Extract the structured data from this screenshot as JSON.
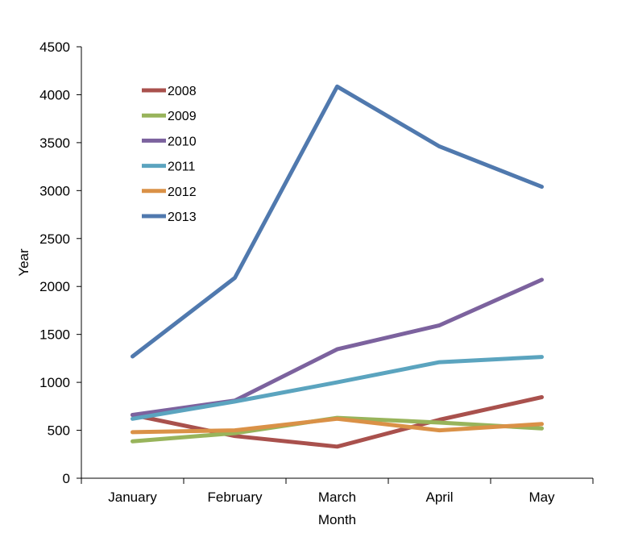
{
  "chart_data": {
    "type": "line",
    "title": "",
    "xlabel": "Month",
    "ylabel": "Year",
    "categories": [
      "January",
      "February",
      "March",
      "April",
      "May"
    ],
    "ylim": [
      0,
      4500
    ],
    "yticks": [
      0,
      500,
      1000,
      1500,
      2000,
      2500,
      3000,
      3500,
      4000,
      4500
    ],
    "grid": false,
    "legend_position": "top-left",
    "series": [
      {
        "name": "2008",
        "color": "#A9514D",
        "values": [
          660,
          440,
          330,
          610,
          845
        ]
      },
      {
        "name": "2009",
        "color": "#98B45B",
        "values": [
          385,
          470,
          630,
          580,
          520
        ]
      },
      {
        "name": "2010",
        "color": "#7C629E",
        "values": [
          660,
          810,
          1345,
          1595,
          2070
        ]
      },
      {
        "name": "2011",
        "color": "#5BA4BF",
        "values": [
          620,
          800,
          1000,
          1210,
          1265
        ]
      },
      {
        "name": "2012",
        "color": "#DA9147",
        "values": [
          480,
          500,
          620,
          500,
          565
        ]
      },
      {
        "name": "2013",
        "color": "#5079AE",
        "values": [
          1270,
          2090,
          4085,
          3460,
          3040
        ]
      }
    ]
  }
}
